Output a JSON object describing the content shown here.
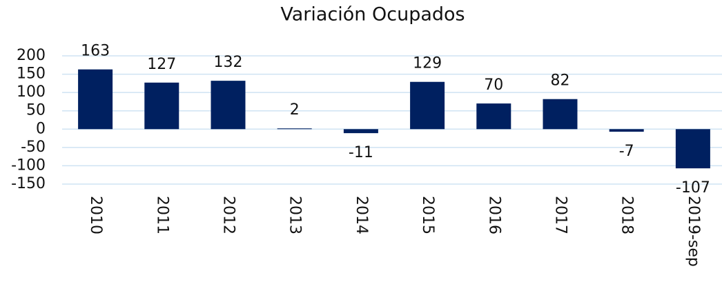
{
  "chart_data": {
    "type": "bar",
    "title": "Variación Ocupados",
    "categories": [
      "2010",
      "2011",
      "2012",
      "2013",
      "2014",
      "2015",
      "2016",
      "2017",
      "2018",
      "2019-sep"
    ],
    "values": [
      163,
      127,
      132,
      2,
      -11,
      129,
      70,
      82,
      -7,
      -107
    ],
    "color": "#002060",
    "ylim": [
      -150,
      200
    ],
    "yticks": [
      -150,
      -100,
      -50,
      0,
      50,
      100,
      150,
      200
    ],
    "grid": true
  }
}
